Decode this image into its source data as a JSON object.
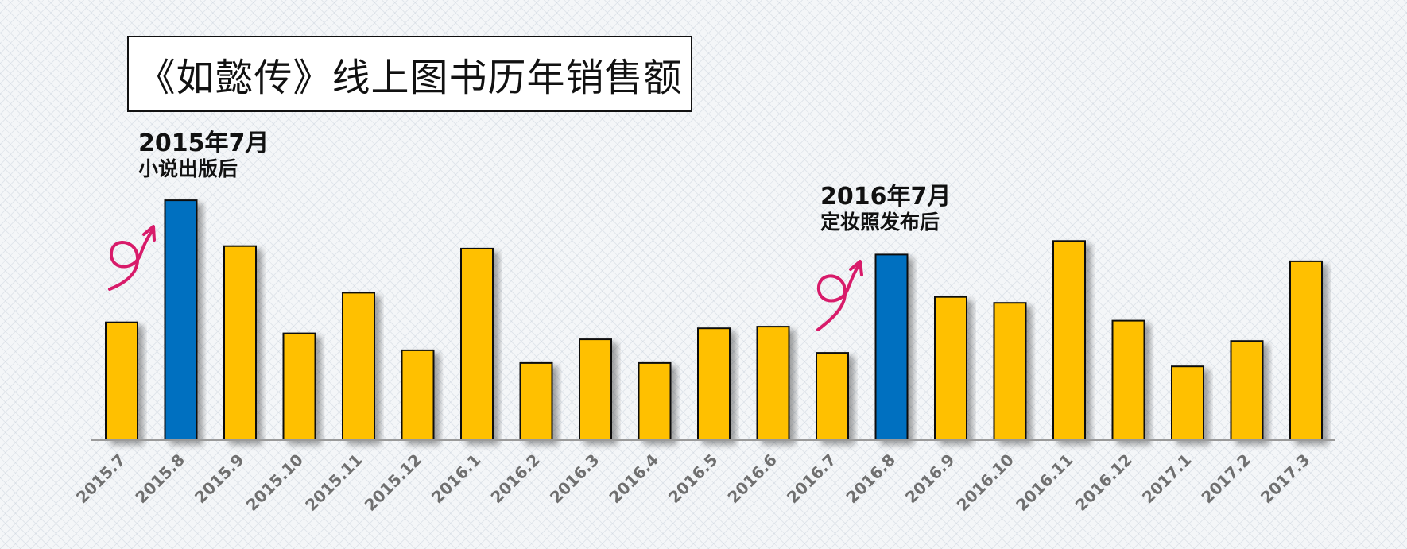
{
  "chart_data": {
    "type": "bar",
    "title": "《如懿传》线上图书历年销售额",
    "categories": [
      "2015.7",
      "2015.8",
      "2015.9",
      "2015.10",
      "2015.11",
      "2015.12",
      "2016.1",
      "2016.2",
      "2016.3",
      "2016.4",
      "2016.5",
      "2016.6",
      "2016.7",
      "2016.8",
      "2016.9",
      "2016.10",
      "2016.11",
      "2016.12",
      "2017.1",
      "2017.2",
      "2017.3"
    ],
    "values": [
      139,
      283,
      229,
      126,
      174,
      106,
      226,
      91,
      119,
      91,
      132,
      134,
      103,
      219,
      169,
      162,
      235,
      141,
      87,
      117,
      211
    ],
    "highlight_indices": [
      1,
      13
    ],
    "colors": {
      "default": "#ffc000",
      "highlight": "#0070c0",
      "annotation_arrow": "#d81b6a"
    },
    "ylim": [
      0,
      300
    ],
    "xlabel": "",
    "ylabel": "",
    "grid": false,
    "legend": "none",
    "annotations": [
      {
        "date": "2015年7月",
        "event": "小说出版后",
        "category": "2015.8"
      },
      {
        "date": "2016年7月",
        "event": "定妆照发布后",
        "category": "2016.8"
      }
    ]
  }
}
